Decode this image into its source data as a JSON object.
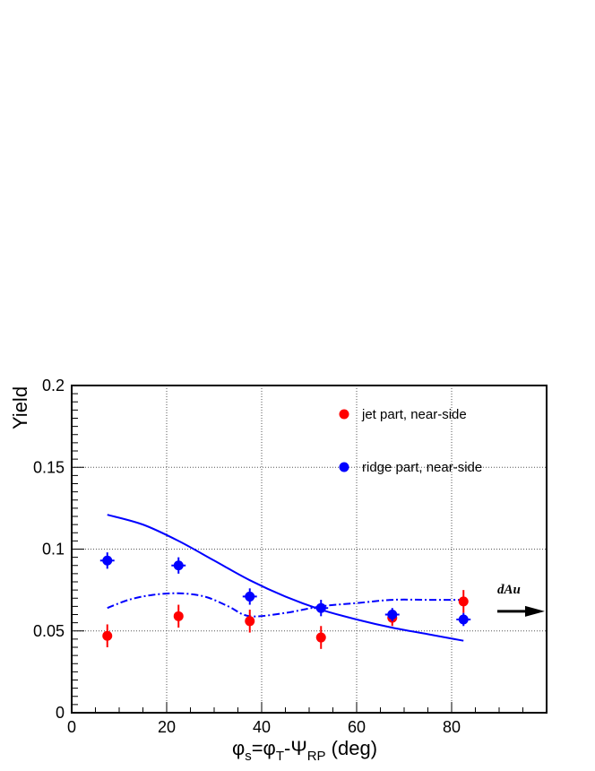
{
  "chart_data": {
    "type": "scatter",
    "xlim": [
      0,
      100
    ],
    "ylim": [
      0,
      0.2
    ],
    "grid": true,
    "legend_position": "top-right",
    "xlabel": {
      "main": "φ",
      "sub1": "s",
      "mid1": "=φ",
      "sub2": "T",
      "mid2": "-Ψ",
      "sub3": "RP",
      "tail": " (deg)"
    },
    "ylabel": "Yield",
    "x_ticks": [
      0,
      20,
      40,
      60,
      80
    ],
    "x_tick_labels": [
      "0",
      "20",
      "40",
      "60",
      "80"
    ],
    "y_ticks": [
      0,
      0.05,
      0.1,
      0.15,
      0.2
    ],
    "y_tick_labels": [
      "0",
      "0.05",
      "0.1",
      "0.15",
      "0.2"
    ],
    "series": [
      {
        "name": "jet part, near-side",
        "color": "#ff0000",
        "x": [
          7.5,
          22.5,
          37.5,
          52.5,
          67.5,
          82.5
        ],
        "y": [
          0.047,
          0.059,
          0.056,
          0.046,
          0.058,
          0.068
        ],
        "yerr": [
          0.007,
          0.007,
          0.007,
          0.007,
          0.005,
          0.007
        ]
      },
      {
        "name": "ridge part, near-side",
        "color": "#0000ff",
        "x": [
          7.5,
          22.5,
          37.5,
          52.5,
          67.5,
          82.5
        ],
        "y": [
          0.093,
          0.09,
          0.071,
          0.064,
          0.06,
          0.057
        ],
        "yerr": [
          0.005,
          0.005,
          0.005,
          0.005,
          0.004,
          0.004
        ],
        "xerr": [
          1.5,
          1.5,
          1.5,
          1.5,
          1.5,
          1.5
        ]
      }
    ],
    "curves": [
      {
        "style": "solid",
        "color": "#0000ff",
        "x": [
          7.5,
          15,
          22.5,
          30,
          37.5,
          45,
          52.5,
          60,
          67.5,
          75,
          82.5
        ],
        "y": [
          0.121,
          0.115,
          0.105,
          0.093,
          0.081,
          0.071,
          0.063,
          0.057,
          0.052,
          0.048,
          0.044
        ]
      },
      {
        "style": "dashdot",
        "color": "#0000ff",
        "x": [
          7.5,
          12,
          17,
          22.5,
          28,
          33,
          37.5,
          45,
          52.5,
          60,
          67.5,
          75,
          82.5
        ],
        "y": [
          0.064,
          0.069,
          0.072,
          0.073,
          0.071,
          0.065,
          0.059,
          0.061,
          0.065,
          0.067,
          0.069,
          0.069,
          0.069
        ]
      }
    ],
    "annotation": {
      "text": "dAu",
      "arrow_y": 0.062
    }
  }
}
